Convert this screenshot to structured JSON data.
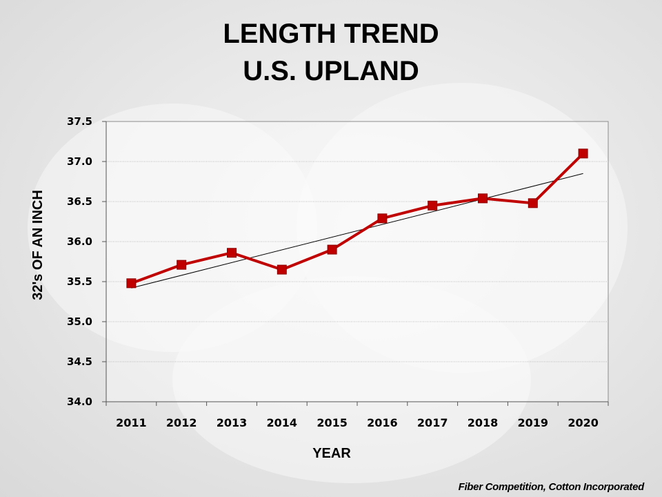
{
  "chart_data": {
    "type": "line",
    "title": "LENGTH TREND",
    "subtitle": "U.S. UPLAND",
    "xlabel": "YEAR",
    "ylabel": "32's OF AN INCH",
    "categories": [
      "2011",
      "2012",
      "2013",
      "2014",
      "2015",
      "2016",
      "2017",
      "2018",
      "2019",
      "2020"
    ],
    "series": [
      {
        "values": [
          35.48,
          35.71,
          35.86,
          35.65,
          35.9,
          36.29,
          36.45,
          36.54,
          36.48,
          37.1
        ],
        "color": "#c00000",
        "marker": "square"
      }
    ],
    "trendline": {
      "start": 35.42,
      "end": 36.85,
      "color": "#000000"
    },
    "ylim": [
      34.0,
      37.5
    ],
    "yticks": [
      "34.0",
      "34.5",
      "35.0",
      "35.5",
      "36.0",
      "36.5",
      "37.0",
      "37.5"
    ],
    "grid": true,
    "legend": "none"
  },
  "footer": {
    "source": "Fiber Competition, Cotton Incorporated"
  }
}
